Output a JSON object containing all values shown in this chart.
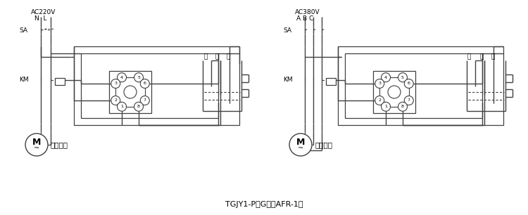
{
  "title": "TGJY1-P（G）（AFR-1）",
  "left_label_ac": "AC220V",
  "left_label_nl": "N  L",
  "left_label_sa": "SA",
  "left_label_km": "KM",
  "left_motor_label": "单相水泵",
  "right_label_ac": "AC380V",
  "right_label_abc": "A B C",
  "right_label_sa": "SA",
  "right_label_km": "KM",
  "right_motor_label": "三相水泵",
  "tank_label_low": "低",
  "tank_label_mid": "中",
  "tank_label_high": "高",
  "bg_color": "#ffffff",
  "line_color": "#404040",
  "text_color": "#000000"
}
